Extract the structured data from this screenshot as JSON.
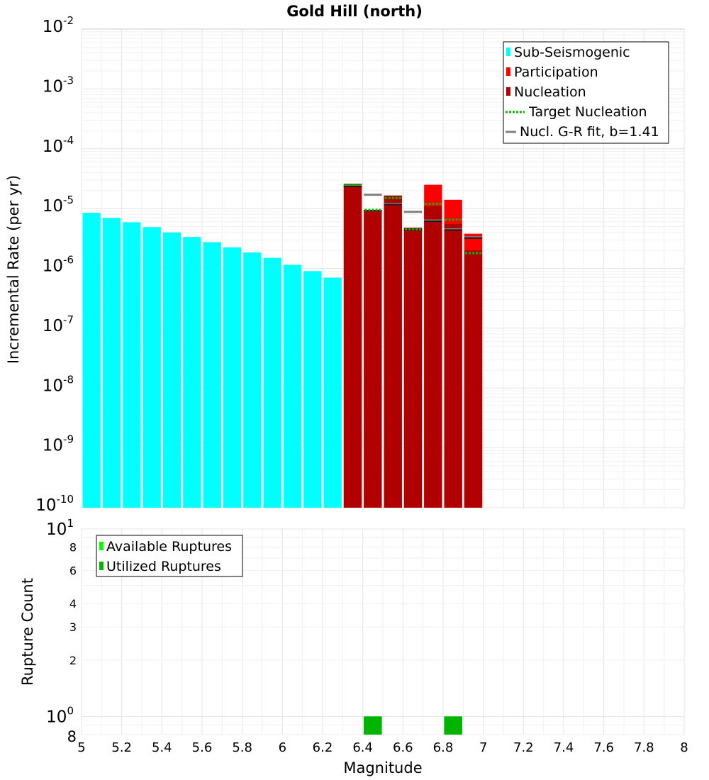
{
  "chart_data": [
    {
      "type": "bar",
      "title": "Gold Hill (north)",
      "ylabel": "Incremental Rate (per yr)",
      "xlabel": "Magnitude",
      "yscale": "log",
      "ylim": [
        1e-10,
        0.01
      ],
      "xlim": [
        5,
        8
      ],
      "grid": true,
      "legend_position": "top-right",
      "y_tick_labels": [
        {
          "base": "10",
          "exp": "-2"
        },
        {
          "base": "10",
          "exp": "-3"
        },
        {
          "base": "10",
          "exp": "-4"
        },
        {
          "base": "10",
          "exp": "-5"
        },
        {
          "base": "10",
          "exp": "-6"
        },
        {
          "base": "10",
          "exp": "-7"
        },
        {
          "base": "10",
          "exp": "-8"
        },
        {
          "base": "10",
          "exp": "-9"
        },
        {
          "base": "10",
          "exp": "-10"
        }
      ],
      "legend": [
        {
          "label": "Sub-Seismogenic",
          "kind": "box",
          "color": "#00ffff"
        },
        {
          "label": "Participation",
          "kind": "box",
          "color": "#ff0000"
        },
        {
          "label": "Nucleation",
          "kind": "box",
          "color": "#b00000"
        },
        {
          "label": "Target Nucleation",
          "kind": "dots",
          "color": "#00bb00"
        },
        {
          "label": "Nucl. G-R fit, b=1.41",
          "kind": "line",
          "color": "#808080"
        }
      ],
      "colors": {
        "sub": "#00ffff",
        "participation": "#ff0000",
        "nucleation": "#b00000",
        "target": "#00bb00",
        "gr_fit": "#808080",
        "marker": "#1a1a1a"
      },
      "series": [
        {
          "name": "Sub-Seismogenic",
          "x": [
            5.05,
            5.15,
            5.25,
            5.35,
            5.45,
            5.55,
            5.65,
            5.75,
            5.85,
            5.95,
            6.05,
            6.15,
            6.25
          ],
          "values": [
            8.5e-06,
            7e-06,
            5.9e-06,
            4.9e-06,
            4e-06,
            3.35e-06,
            2.75e-06,
            2.25e-06,
            1.85e-06,
            1.5e-06,
            1.15e-06,
            9e-07,
            7e-07
          ]
        },
        {
          "name": "Participation",
          "x": [
            6.35,
            6.45,
            6.55,
            6.65,
            6.75,
            6.85,
            6.95
          ],
          "values": [
            2.6e-05,
            9.5e-06,
            1.65e-05,
            4.8e-06,
            2.5e-05,
            1.4e-05,
            3.8e-06
          ]
        },
        {
          "name": "Nucleation",
          "x": [
            6.35,
            6.45,
            6.55,
            6.65,
            6.75,
            6.85,
            6.95
          ],
          "values": [
            2.6e-05,
            9.5e-06,
            1.65e-05,
            4.8e-06,
            1.1e-05,
            5.5e-06,
            2e-06
          ]
        },
        {
          "name": "Target Nucleation",
          "x": [
            6.35,
            6.45,
            6.55,
            6.65,
            6.75,
            6.85,
            6.95
          ],
          "values": [
            2.5e-05,
            9.5e-06,
            1.5e-05,
            4.5e-06,
            1.2e-05,
            6.5e-06,
            1.8e-06
          ]
        },
        {
          "name": "Nucl. G-R fit, b=1.41",
          "x": [
            6.35,
            6.45,
            6.55,
            6.65,
            6.75,
            6.85,
            6.95
          ],
          "values": [
            2.4e-05,
            1.7e-05,
            1.2e-05,
            8.8e-06,
            6.3e-06,
            4.5e-06,
            3.3e-06
          ]
        },
        {
          "name": "Nucleation fit markers",
          "x": [
            6.35,
            6.45,
            6.55,
            6.65,
            6.75,
            6.85,
            6.95
          ],
          "values": [
            2.4e-05,
            9.5e-06,
            1.2e-05,
            4.5e-06,
            6.3e-06,
            4.5e-06,
            3.3e-06
          ]
        }
      ]
    },
    {
      "type": "bar",
      "title": "",
      "ylabel": "Rupture Count",
      "xlabel": "Magnitude",
      "yscale": "log",
      "ylim": [
        0.8,
        10
      ],
      "xlim": [
        5,
        8
      ],
      "grid": true,
      "legend_position": "top-left",
      "x_tick_labels": [
        "5",
        "5.2",
        "5.4",
        "5.6",
        "5.8",
        "6",
        "6.2",
        "6.4",
        "6.6",
        "6.8",
        "7",
        "7.2",
        "7.4",
        "7.6",
        "7.8",
        "8"
      ],
      "y_major_labels": [
        {
          "base": "10",
          "exp": "1"
        },
        {
          "base": "10",
          "exp": "0"
        }
      ],
      "y_minor_labels": [
        {
          "value": 8,
          "label": "8"
        },
        {
          "value": 6,
          "label": "6"
        },
        {
          "value": 4,
          "label": "4"
        },
        {
          "value": 3,
          "label": "3"
        },
        {
          "value": 2,
          "label": "2"
        },
        {
          "value": 0.8,
          "label": "8"
        }
      ],
      "legend": [
        {
          "label": "Available Ruptures",
          "kind": "box",
          "color": "#00ff00"
        },
        {
          "label": "Utilized Ruptures",
          "kind": "box",
          "color": "#00b400"
        }
      ],
      "series": [
        {
          "name": "Available Ruptures",
          "x": [
            6.45,
            6.85
          ],
          "values": [
            1,
            1
          ]
        },
        {
          "name": "Utilized Ruptures",
          "x": [
            6.45,
            6.85
          ],
          "values": [
            1,
            1
          ]
        }
      ]
    }
  ]
}
